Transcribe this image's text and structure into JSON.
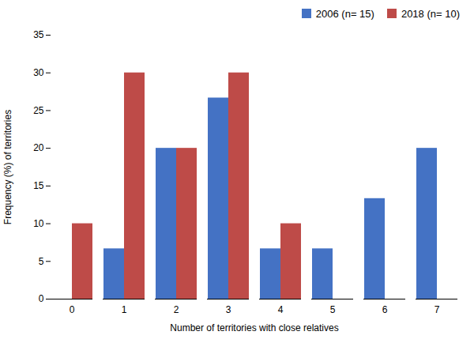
{
  "chart_data": {
    "type": "bar",
    "categories": [
      0,
      1,
      2,
      3,
      4,
      5,
      6,
      7
    ],
    "series": [
      {
        "name": "2006 (n= 15)",
        "color": "#4472C4",
        "values": [
          0,
          6.67,
          20.0,
          26.67,
          6.67,
          6.67,
          13.33,
          20.0
        ]
      },
      {
        "name": "2018 (n= 10)",
        "color": "#BE4B48",
        "values": [
          10.0,
          30.0,
          20.0,
          30.0,
          10.0,
          0,
          0,
          0
        ]
      }
    ],
    "xlabel": "Number of territories with close relatives",
    "ylabel": "Frequency (%) of territories",
    "ylim": [
      0,
      35
    ],
    "yticks": [
      0,
      5,
      10,
      15,
      20,
      25,
      30,
      35
    ],
    "grid": false,
    "legend": "upper right"
  }
}
